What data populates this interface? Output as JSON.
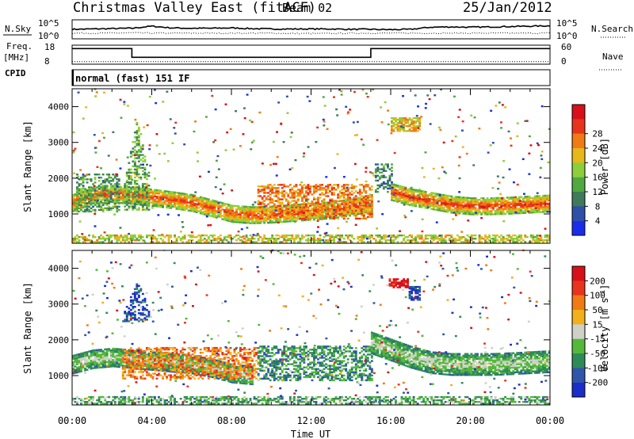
{
  "header": {
    "station": "Christmas Valley East (fitACF)",
    "beam": "Beam 02",
    "date": "25/Jan/2012"
  },
  "noise_panel": {
    "left_label": "N.Sky",
    "right_label": "N.Search",
    "left_ticks": [
      "10^5",
      "10^0"
    ],
    "right_ticks": [
      "10^5",
      "10^0"
    ]
  },
  "freq_panel": {
    "left_label_line1": "Freq.",
    "left_label_line2": "[MHz]",
    "cpid_label": "CPID",
    "right_label": "Nave",
    "left_ticks": [
      "18",
      "8"
    ],
    "right_ticks": [
      "60",
      "0"
    ],
    "mode_text": "normal (fast) 151 IF"
  },
  "chart_data": [
    {
      "type": "heatmap",
      "name": "Power",
      "ylabel": "Slant Range [km]",
      "xlabel": "",
      "x_ticks": [
        "00:00",
        "04:00",
        "08:00",
        "12:00",
        "16:00",
        "20:00",
        "00:00"
      ],
      "xlim_hours": [
        0,
        24
      ],
      "y_ticks": [
        1000,
        2000,
        3000,
        4000
      ],
      "ylim": [
        180,
        4500
      ],
      "colorbar": {
        "label": "Power [dB]",
        "ticks": [
          "4",
          "8",
          "12",
          "16",
          "20",
          "24",
          "28"
        ],
        "colors": [
          "#1a2eea",
          "#2f4fa8",
          "#3f7a5a",
          "#4fa840",
          "#8ccf3a",
          "#e6b81a",
          "#f07a14",
          "#e8341c",
          "#d8101a"
        ]
      },
      "features": [
        {
          "kind": "band",
          "t": [
            0,
            1,
            2,
            3,
            4,
            5,
            6,
            7,
            8,
            9,
            10,
            11,
            12,
            13,
            14,
            15
          ],
          "range_center": [
            1300,
            1500,
            1550,
            1500,
            1450,
            1380,
            1300,
            1150,
            1000,
            960,
            980,
            1020,
            1060,
            1100,
            1180,
            1300
          ],
          "width": 240,
          "level": 0.75
        },
        {
          "kind": "band",
          "t": [
            16,
            17,
            18,
            19,
            20,
            21,
            22,
            23,
            24
          ],
          "range_center": [
            1600,
            1450,
            1350,
            1250,
            1200,
            1200,
            1220,
            1250,
            1280
          ],
          "width": 230,
          "level": 0.78
        },
        {
          "kind": "cloud",
          "t0": 9.3,
          "t1": 15.0,
          "r0": 850,
          "r1": 1800,
          "level": 0.72
        },
        {
          "kind": "cloud",
          "t0": 0.2,
          "t1": 2.4,
          "r0": 1050,
          "r1": 2100,
          "level": 0.35
        },
        {
          "kind": "plume",
          "t0": 2.6,
          "t1": 3.9,
          "r0": 1100,
          "r1": 3700,
          "level": 0.4
        },
        {
          "kind": "cloud",
          "t0": 15.2,
          "t1": 16.0,
          "r0": 1600,
          "r1": 2400,
          "level": 0.3
        },
        {
          "kind": "patch",
          "t0": 16.0,
          "t1": 17.5,
          "r0": 3300,
          "r1": 3700,
          "level": 0.62
        },
        {
          "kind": "ground",
          "t0": 0,
          "t1": 24,
          "r0": 200,
          "r1": 420,
          "level": 0.55
        }
      ]
    },
    {
      "type": "heatmap",
      "name": "Velocity",
      "ylabel": "Slant Range [km]",
      "xlabel": "Time UT",
      "x_ticks": [
        "00:00",
        "04:00",
        "08:00",
        "12:00",
        "16:00",
        "20:00",
        "00:00"
      ],
      "xlim_hours": [
        0,
        24
      ],
      "y_ticks": [
        1000,
        2000,
        3000,
        4000
      ],
      "ylim": [
        180,
        4500
      ],
      "colorbar": {
        "label": "Velocity [m s^-1]",
        "ticks": [
          "200",
          "100",
          "50",
          "15",
          "-15",
          "-50",
          "-100",
          "-200"
        ],
        "colors": [
          "#1a2ec8",
          "#2f56a8",
          "#2f8a5a",
          "#54b83a",
          "#cfd0c8",
          "#f2b01a",
          "#f07a14",
          "#e8341c",
          "#d8101a"
        ]
      },
      "features": [
        {
          "kind": "band",
          "t": [
            0,
            1,
            2,
            3,
            4,
            5,
            6,
            7,
            8,
            9
          ],
          "range_center": [
            1300,
            1450,
            1500,
            1450,
            1400,
            1350,
            1300,
            1200,
            1050,
            1000
          ],
          "width": 260,
          "level": 0.45
        },
        {
          "kind": "cloud",
          "t0": 2.5,
          "t1": 9.3,
          "r0": 900,
          "r1": 1800,
          "level": 0.72
        },
        {
          "kind": "cloud",
          "t0": 9.3,
          "t1": 15.0,
          "r0": 850,
          "r1": 1800,
          "level": 0.3
        },
        {
          "kind": "band",
          "t": [
            15,
            16,
            17,
            18,
            19,
            20,
            21,
            22,
            23,
            24
          ],
          "range_center": [
            1900,
            1700,
            1500,
            1350,
            1300,
            1300,
            1300,
            1320,
            1350,
            1380
          ],
          "width": 300,
          "level": 0.45
        },
        {
          "kind": "patch",
          "t0": 15.9,
          "t1": 16.9,
          "r0": 3450,
          "r1": 3700,
          "level": 0.95
        },
        {
          "kind": "patch",
          "t0": 16.9,
          "t1": 17.5,
          "r0": 3100,
          "r1": 3500,
          "level": 0.12
        },
        {
          "kind": "plume",
          "t0": 2.6,
          "t1": 3.9,
          "r0": 2500,
          "r1": 3600,
          "level": 0.1
        },
        {
          "kind": "ground",
          "t0": 0,
          "t1": 24,
          "r0": 200,
          "r1": 420,
          "level": 0.35
        }
      ]
    }
  ],
  "noise_series": {
    "n_sky_log10": [
      2.5,
      2.6,
      2.7,
      2.8,
      3.4,
      2.9,
      2.8,
      2.8,
      2.9,
      2.7,
      2.6,
      2.6,
      2.6,
      2.6,
      2.5,
      2.5,
      2.4,
      2.5,
      3.1,
      3.2,
      3.1,
      3.2,
      3.3,
      3.4,
      3.5
    ],
    "n_search_log10": [
      1.4,
      1.4,
      1.4,
      1.5,
      1.4,
      1.4,
      1.4,
      1.4,
      1.4,
      1.4,
      1.4,
      1.3,
      1.3,
      1.3,
      1.4,
      1.4,
      1.4,
      1.4,
      1.4,
      1.4,
      1.4,
      1.4,
      1.4,
      1.4,
      1.4
    ]
  },
  "freq_series": {
    "steps_hours": [
      0,
      3.0,
      15.0,
      24
    ],
    "freq_mhz": [
      16.5,
      11.5,
      16.5
    ],
    "nave_const": 6
  }
}
